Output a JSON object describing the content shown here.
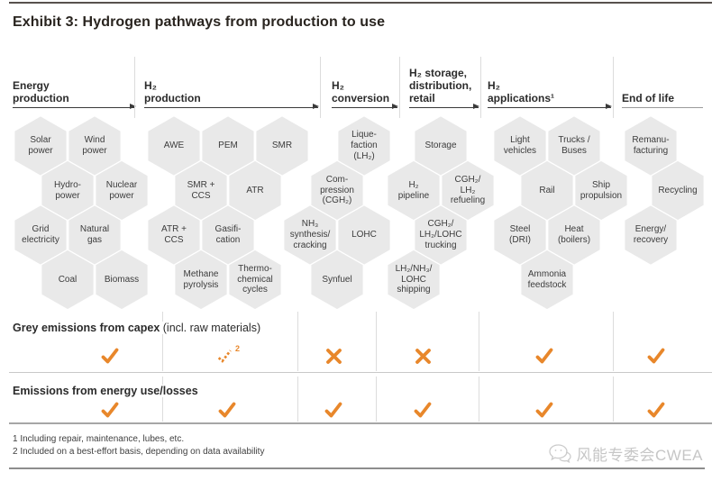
{
  "title": "Exhibit 3: Hydrogen pathways from production to use",
  "columns": [
    {
      "header": "Energy\nproduction",
      "arrow": true,
      "hexes": [
        {
          "label": "Solar\npower",
          "row": 0,
          "k": 0
        },
        {
          "label": "Wind\npower",
          "row": 0,
          "k": 2
        },
        {
          "label": "Hydro-\npower",
          "row": 1,
          "k": 1
        },
        {
          "label": "Nuclear\npower",
          "row": 1,
          "k": 3
        },
        {
          "label": "Grid\nelectricity",
          "row": 2,
          "k": 0
        },
        {
          "label": "Natural\ngas",
          "row": 2,
          "k": 2
        },
        {
          "label": "Coal",
          "row": 3,
          "k": 1
        },
        {
          "label": "Biomass",
          "row": 3,
          "k": 3
        }
      ]
    },
    {
      "header": "H₂\nproduction",
      "arrow": true,
      "hexes": [
        {
          "label": "AWE",
          "row": 0,
          "k": 0
        },
        {
          "label": "PEM",
          "row": 0,
          "k": 2
        },
        {
          "label": "SMR",
          "row": 0,
          "k": 4
        },
        {
          "label": "SMR +\nCCS",
          "row": 1,
          "k": 1
        },
        {
          "label": "ATR",
          "row": 1,
          "k": 3
        },
        {
          "label": "ATR +\nCCS",
          "row": 2,
          "k": 0
        },
        {
          "label": "Gasifi-\ncation",
          "row": 2,
          "k": 2
        },
        {
          "label": "Methane\npyrolysis",
          "row": 3,
          "k": 1
        },
        {
          "label": "Thermo-\nchemical\ncycles",
          "row": 3,
          "k": 3
        }
      ]
    },
    {
      "header": "H₂\nconversion",
      "arrow": true,
      "hexes": [
        {
          "label": "Lique-\nfaction\n(LH₂)",
          "row": 0,
          "k": 2
        },
        {
          "label": "Com-\npression\n(CGH₂)",
          "row": 1,
          "k": 1
        },
        {
          "label": "NH₃\nsynthesis/\ncracking",
          "row": 2,
          "k": 0
        },
        {
          "label": "LOHC",
          "row": 2,
          "k": 2
        },
        {
          "label": "Synfuel",
          "row": 3,
          "k": 1
        }
      ]
    },
    {
      "header": "H₂ storage,\ndistribution,\nretail",
      "arrow": true,
      "hexes": [
        {
          "label": "Storage",
          "row": 0,
          "k": 1
        },
        {
          "label": "H₂\npipeline",
          "row": 1,
          "k": 0
        },
        {
          "label": "CGH₂/\nLH₂\nrefueling",
          "row": 1,
          "k": 2
        },
        {
          "label": "CGH₂/\nLH₂/LOHC\ntrucking",
          "row": 2,
          "k": 1
        },
        {
          "label": "LH₂/NH₃/\nLOHC\nshipping",
          "row": 3,
          "k": 0
        }
      ]
    },
    {
      "header": "H₂\napplications¹",
      "arrow": true,
      "hexes": [
        {
          "label": "Light\nvehicles",
          "row": 0,
          "k": 0
        },
        {
          "label": "Trucks /\nBuses",
          "row": 0,
          "k": 2
        },
        {
          "label": "Rail",
          "row": 1,
          "k": 1
        },
        {
          "label": "Ship\npropulsion",
          "row": 1,
          "k": 3
        },
        {
          "label": "Steel\n(DRI)",
          "row": 2,
          "k": 0
        },
        {
          "label": "Heat\n(boilers)",
          "row": 2,
          "k": 2
        },
        {
          "label": "Ammonia\nfeedstock",
          "row": 3,
          "k": 1
        }
      ]
    },
    {
      "header": "End of life",
      "arrow": false,
      "hexes": [
        {
          "label": "Remanu-\nfacturing",
          "row": 0,
          "k": 0
        },
        {
          "label": "Recycling",
          "row": 1,
          "k": 1
        },
        {
          "label": "Energy/\nrecovery",
          "row": 2,
          "k": 0
        }
      ]
    }
  ],
  "emission_rows": [
    {
      "label_bold": "Grey emissions from capex",
      "label_note": " (incl. raw materials)",
      "marks": [
        "check",
        "check-partial",
        "cross",
        "cross",
        "check",
        "check"
      ],
      "partial_ref": "2"
    },
    {
      "label_bold": "Emissions from energy use/losses",
      "label_note": "",
      "marks": [
        "check",
        "check",
        "check",
        "check",
        "check",
        "check"
      ]
    }
  ],
  "footnotes": [
    "1 Including repair, maintenance, lubes, etc.",
    "2 Included on a best-effort basis, depending on data availability"
  ],
  "watermark": {
    "text": "风能专委会CWEA"
  },
  "colors": {
    "accent": "#E8872B",
    "hex_fill": "#E9E9E9",
    "title": "#29241F"
  }
}
